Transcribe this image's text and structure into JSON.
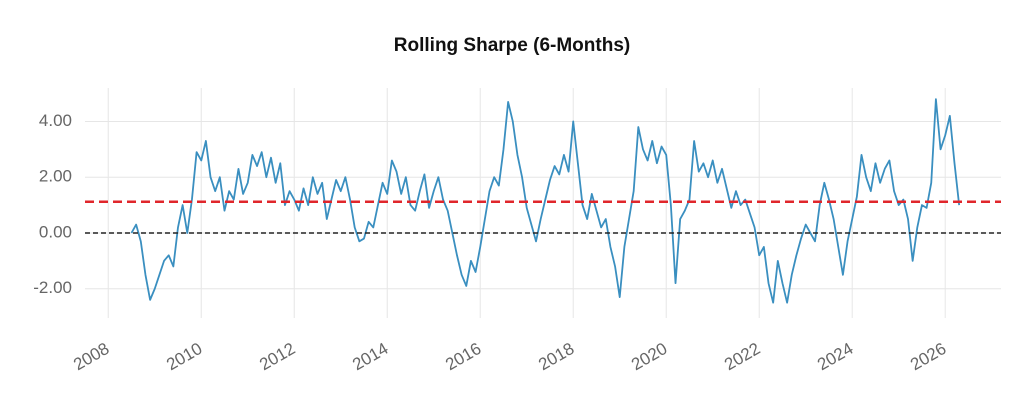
{
  "chart_data": {
    "type": "line",
    "title": "Rolling Sharpe (6-Months)",
    "x": [
      2008.5,
      2008.6,
      2008.7,
      2008.8,
      2008.9,
      2009.0,
      2009.1,
      2009.2,
      2009.3,
      2009.4,
      2009.5,
      2009.6,
      2009.7,
      2009.8,
      2009.9,
      2010.0,
      2010.1,
      2010.2,
      2010.3,
      2010.4,
      2010.5,
      2010.6,
      2010.7,
      2010.8,
      2010.9,
      2011.0,
      2011.1,
      2011.2,
      2011.3,
      2011.4,
      2011.5,
      2011.6,
      2011.7,
      2011.8,
      2011.9,
      2012.0,
      2012.1,
      2012.2,
      2012.3,
      2012.4,
      2012.5,
      2012.6,
      2012.7,
      2012.8,
      2012.9,
      2013.0,
      2013.1,
      2013.2,
      2013.3,
      2013.4,
      2013.5,
      2013.6,
      2013.7,
      2013.8,
      2013.9,
      2014.0,
      2014.1,
      2014.2,
      2014.3,
      2014.4,
      2014.5,
      2014.6,
      2014.7,
      2014.8,
      2014.9,
      2015.0,
      2015.1,
      2015.2,
      2015.3,
      2015.4,
      2015.5,
      2015.6,
      2015.7,
      2015.8,
      2015.9,
      2016.0,
      2016.1,
      2016.2,
      2016.3,
      2016.4,
      2016.5,
      2016.6,
      2016.7,
      2016.8,
      2016.9,
      2017.0,
      2017.1,
      2017.2,
      2017.3,
      2017.4,
      2017.5,
      2017.6,
      2017.7,
      2017.8,
      2017.9,
      2018.0,
      2018.1,
      2018.2,
      2018.3,
      2018.4,
      2018.5,
      2018.6,
      2018.7,
      2018.8,
      2018.9,
      2019.0,
      2019.1,
      2019.2,
      2019.3,
      2019.4,
      2019.5,
      2019.6,
      2019.7,
      2019.8,
      2019.9,
      2020.0,
      2020.1,
      2020.2,
      2020.3,
      2020.4,
      2020.5,
      2020.6,
      2020.7,
      2020.8,
      2020.9,
      2021.0,
      2021.1,
      2021.2,
      2021.3,
      2021.4,
      2021.5,
      2021.6,
      2021.7,
      2021.8,
      2021.9,
      2022.0,
      2022.1,
      2022.2,
      2022.3,
      2022.4,
      2022.5,
      2022.6,
      2022.7,
      2022.8,
      2022.9,
      2023.0,
      2023.1,
      2023.2,
      2023.3,
      2023.4,
      2023.5,
      2023.6,
      2023.7,
      2023.8,
      2023.9,
      2024.0,
      2024.1,
      2024.2,
      2024.3,
      2024.4,
      2024.5,
      2024.6,
      2024.7,
      2024.8,
      2024.9,
      2025.0,
      2025.1,
      2025.2,
      2025.3,
      2025.4,
      2025.5,
      2025.6,
      2025.7,
      2025.8,
      2025.9,
      2026.0,
      2026.1,
      2026.2,
      2026.3
    ],
    "series": [
      {
        "color": "#3a8fc0",
        "values": [
          0.0,
          0.3,
          -0.3,
          -1.5,
          -2.4,
          -2.0,
          -1.5,
          -1.0,
          -0.8,
          -1.2,
          0.2,
          1.0,
          0.0,
          1.2,
          2.9,
          2.6,
          3.3,
          2.0,
          1.5,
          2.0,
          0.8,
          1.5,
          1.2,
          2.3,
          1.4,
          1.8,
          2.8,
          2.4,
          2.9,
          2.0,
          2.7,
          1.8,
          2.5,
          1.0,
          1.5,
          1.2,
          0.8,
          1.6,
          1.0,
          2.0,
          1.4,
          1.8,
          0.5,
          1.2,
          1.9,
          1.5,
          2.0,
          1.2,
          0.2,
          -0.3,
          -0.2,
          0.4,
          0.2,
          1.0,
          1.8,
          1.4,
          2.6,
          2.2,
          1.4,
          2.0,
          1.0,
          0.8,
          1.5,
          2.1,
          0.9,
          1.5,
          2.0,
          1.2,
          0.8,
          0.0,
          -0.8,
          -1.5,
          -1.9,
          -1.0,
          -1.4,
          -0.5,
          0.5,
          1.5,
          2.0,
          1.7,
          3.0,
          4.7,
          4.0,
          2.8,
          2.0,
          0.9,
          0.3,
          -0.3,
          0.5,
          1.2,
          1.9,
          2.4,
          2.1,
          2.8,
          2.2,
          4.0,
          2.5,
          1.0,
          0.5,
          1.4,
          0.8,
          0.2,
          0.5,
          -0.5,
          -1.2,
          -2.3,
          -0.5,
          0.5,
          1.5,
          3.8,
          3.0,
          2.6,
          3.3,
          2.5,
          3.1,
          2.8,
          1.0,
          -1.8,
          0.5,
          0.8,
          1.2,
          3.3,
          2.2,
          2.5,
          2.0,
          2.6,
          1.8,
          2.3,
          1.6,
          0.9,
          1.5,
          1.0,
          1.2,
          0.7,
          0.2,
          -0.8,
          -0.5,
          -1.8,
          -2.5,
          -1.0,
          -1.8,
          -2.5,
          -1.5,
          -0.8,
          -0.2,
          0.3,
          0.0,
          -0.3,
          1.0,
          1.8,
          1.2,
          0.5,
          -0.5,
          -1.5,
          -0.3,
          0.5,
          1.3,
          2.8,
          2.0,
          1.5,
          2.5,
          1.8,
          2.3,
          2.6,
          1.5,
          1.0,
          1.2,
          0.5,
          -1.0,
          0.2,
          1.0,
          0.9,
          1.8,
          4.8,
          3.0,
          3.5,
          4.2,
          2.5,
          1.0
        ]
      }
    ],
    "hlines": [
      {
        "value": 1.12,
        "color": "#e0262b"
      },
      {
        "value": 0,
        "color": "#222222"
      }
    ],
    "xlim": [
      2007.5,
      2027.2
    ],
    "xticks": [
      2008,
      2010,
      2012,
      2014,
      2016,
      2018,
      2020,
      2022,
      2024,
      2026
    ],
    "ylim": [
      -3.05,
      5.2
    ],
    "yticks": [
      {
        "value": -2,
        "label": "-2.00"
      },
      {
        "value": 0,
        "label": "0.00"
      },
      {
        "value": 2,
        "label": "2.00"
      },
      {
        "value": 4,
        "label": "4.00"
      }
    ],
    "grid": true
  }
}
